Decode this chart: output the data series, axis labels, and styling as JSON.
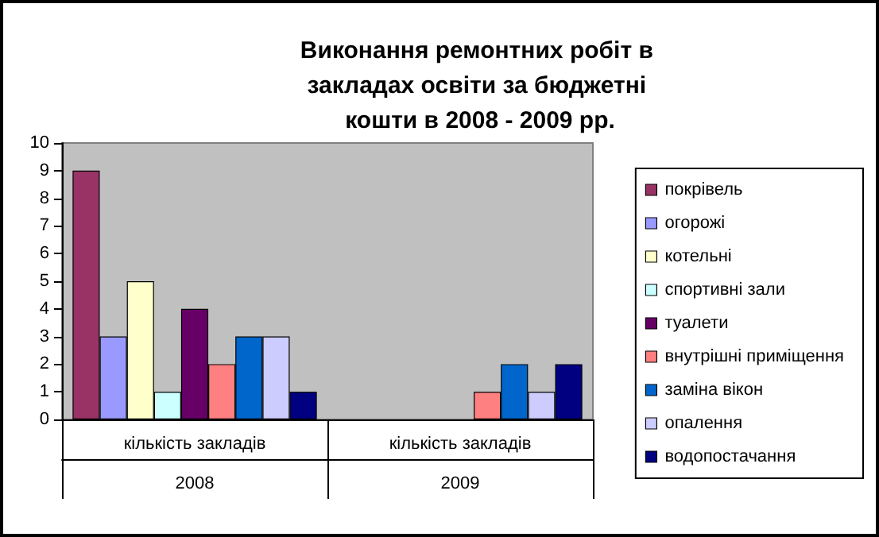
{
  "chart_data": {
    "type": "bar",
    "title": "Виконання ремонтних робіт в закладах освіти за бюджетні кошти в 2008 - 2009 рр.",
    "categories": [
      "кількість закладів",
      "кількість закладів"
    ],
    "annotations": [
      "2008",
      "2009"
    ],
    "series": [
      {
        "name": "покрівель",
        "color": "#993366",
        "values": [
          9,
          null
        ]
      },
      {
        "name": "огорожі",
        "color": "#9999ff",
        "values": [
          3,
          null
        ]
      },
      {
        "name": "котельні",
        "color": "#ffffcc",
        "values": [
          5,
          null
        ]
      },
      {
        "name": "спортивні зали",
        "color": "#ccffff",
        "values": [
          1,
          null
        ]
      },
      {
        "name": "туалети",
        "color": "#660066",
        "values": [
          4,
          null
        ]
      },
      {
        "name": "внутрішні приміщення",
        "color": "#ff8080",
        "values": [
          2,
          1
        ]
      },
      {
        "name": "заміна вікон",
        "color": "#0066cc",
        "values": [
          3,
          2
        ]
      },
      {
        "name": "опалення",
        "color": "#ccccff",
        "values": [
          3,
          1
        ]
      },
      {
        "name": "водопостачання",
        "color": "#000080",
        "values": [
          1,
          2
        ]
      }
    ],
    "ylim": [
      0,
      10
    ],
    "yticks": [
      0,
      1,
      2,
      3,
      4,
      5,
      6,
      7,
      8,
      9,
      10
    ],
    "grid": false,
    "legend": "right"
  }
}
